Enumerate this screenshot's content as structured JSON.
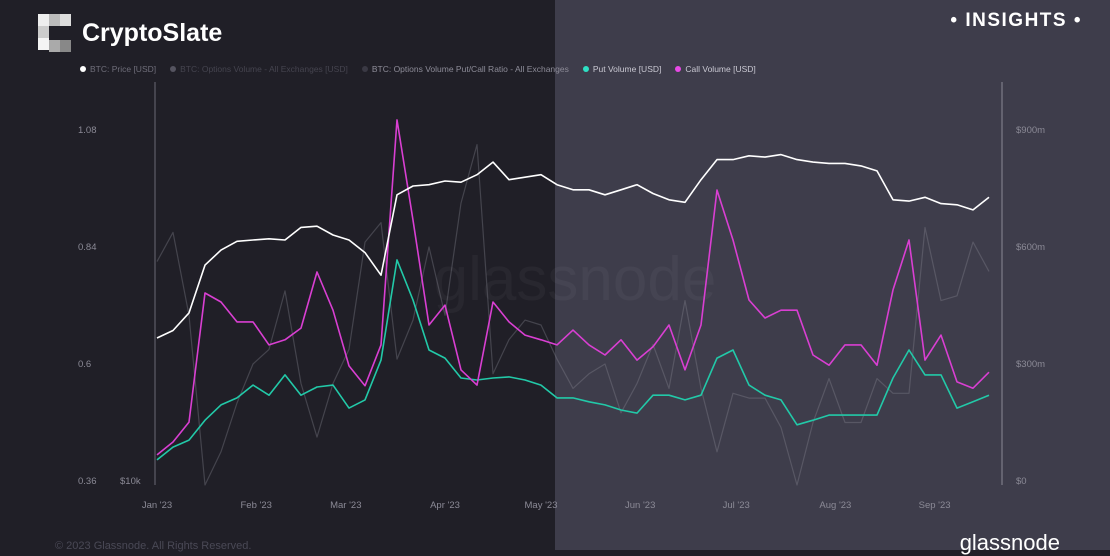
{
  "brand": {
    "name": "CryptoSlate",
    "badge": "• INSIGHTS •"
  },
  "footer": {
    "copyright": "© 2023 Glassnode. All Rights Reserved.",
    "logo": "glassnode",
    "watermark": "glassnode"
  },
  "colors": {
    "price": "#ffffff",
    "total_volume": "#6b6a75",
    "ratio": "#5a5966",
    "put": "#22c9a8",
    "call": "#d93fd2",
    "bg_left": "#201f27",
    "bg_right": "#3e3d4b"
  },
  "chart_data": {
    "type": "line",
    "legend_position": "top-left",
    "grid": false,
    "legend": [
      "BTC: Price [USD]",
      "BTC: Options Volume - All Exchanges [USD]",
      "BTC: Options Volume Put/Call Ratio - All Exchanges",
      "Put Volume [USD]",
      "Call Volume [USD]"
    ],
    "x_ticks": [
      "Jan '23",
      "Feb '23",
      "Mar '23",
      "Apr '23",
      "May '23",
      "Jun '23",
      "Jul '23",
      "Aug '23",
      "Sep '23"
    ],
    "y_left": {
      "ticks": [
        "0.36",
        "0.6",
        "0.84",
        "1.08"
      ],
      "range": [
        0.36,
        1.08
      ]
    },
    "y_right": {
      "ticks": [
        "$0",
        "$300m",
        "$600m",
        "$900m"
      ],
      "range": [
        0,
        900
      ]
    },
    "price_axis_label": "$10k",
    "x": [
      "2023-01-01",
      "2023-01-06",
      "2023-01-11",
      "2023-01-16",
      "2023-01-21",
      "2023-01-26",
      "2023-01-31",
      "2023-02-05",
      "2023-02-10",
      "2023-02-15",
      "2023-02-20",
      "2023-02-25",
      "2023-03-02",
      "2023-03-07",
      "2023-03-12",
      "2023-03-17",
      "2023-03-22",
      "2023-03-27",
      "2023-04-01",
      "2023-04-06",
      "2023-04-11",
      "2023-04-16",
      "2023-04-21",
      "2023-04-26",
      "2023-05-01",
      "2023-05-06",
      "2023-05-11",
      "2023-05-16",
      "2023-05-21",
      "2023-05-26",
      "2023-05-31",
      "2023-06-05",
      "2023-06-10",
      "2023-06-15",
      "2023-06-20",
      "2023-06-25",
      "2023-06-30",
      "2023-07-05",
      "2023-07-10",
      "2023-07-15",
      "2023-07-20",
      "2023-07-25",
      "2023-07-30",
      "2023-08-04",
      "2023-08-09",
      "2023-08-14",
      "2023-08-19",
      "2023-08-24",
      "2023-08-29",
      "2023-09-03",
      "2023-09-08",
      "2023-09-13",
      "2023-09-18"
    ],
    "series": [
      {
        "name": "BTC: Price [USD]",
        "axis": "price",
        "values": [
          16600,
          17200,
          18600,
          22400,
          23600,
          24300,
          24400,
          24500,
          24400,
          25400,
          25500,
          24800,
          24400,
          23400,
          21600,
          28000,
          28700,
          28800,
          29100,
          29000,
          29600,
          30600,
          29200,
          29400,
          29600,
          28800,
          28400,
          28400,
          28000,
          28400,
          28800,
          28100,
          27600,
          27400,
          29200,
          30800,
          30800,
          31100,
          31000,
          31200,
          30800,
          30600,
          30500,
          30500,
          30300,
          29900,
          27600,
          27500,
          27800,
          27300,
          27200,
          26800,
          27800
        ]
      },
      {
        "name": "BTC: Options Volume Put/Call Ratio - All Exchanges",
        "axis": "left",
        "values": [
          0.81,
          0.87,
          0.7,
          0.32,
          0.42,
          0.52,
          0.6,
          0.63,
          0.75,
          0.56,
          0.45,
          0.56,
          0.63,
          0.85,
          0.89,
          0.61,
          0.69,
          0.84,
          0.7,
          0.93,
          1.05,
          0.58,
          0.65,
          0.69,
          0.68,
          0.61,
          0.55,
          0.58,
          0.6,
          0.5,
          0.56,
          0.64,
          0.55,
          0.73,
          0.55,
          0.42,
          0.54,
          0.53,
          0.53,
          0.47,
          0.33,
          0.48,
          0.57,
          0.48,
          0.48,
          0.57,
          0.54,
          0.54,
          0.88,
          0.73,
          0.74,
          0.85,
          0.79
        ]
      },
      {
        "name": "Put Volume [USD]",
        "axis": "right",
        "unit": "$m",
        "values": [
          54,
          87,
          105,
          156,
          195,
          213,
          246,
          220,
          272,
          220,
          241,
          246,
          187,
          208,
          310,
          567,
          464,
          336,
          315,
          264,
          259,
          264,
          267,
          259,
          246,
          213,
          213,
          203,
          195,
          182,
          174,
          220,
          220,
          208,
          220,
          315,
          336,
          246,
          220,
          208,
          144,
          156,
          169,
          169,
          169,
          169,
          264,
          336,
          272,
          272,
          187,
          203,
          220
        ]
      },
      {
        "name": "Call Volume [USD]",
        "axis": "right",
        "unit": "$m",
        "values": [
          67,
          100,
          151,
          482,
          459,
          408,
          408,
          349,
          362,
          392,
          536,
          438,
          295,
          244,
          349,
          926,
          669,
          400,
          451,
          285,
          246,
          459,
          408,
          374,
          362,
          349,
          387,
          349,
          323,
          362,
          310,
          344,
          400,
          285,
          400,
          746,
          618,
          464,
          418,
          438,
          438,
          323,
          297,
          349,
          349,
          297,
          490,
          618,
          310,
          374,
          254,
          238,
          279
        ]
      }
    ]
  }
}
